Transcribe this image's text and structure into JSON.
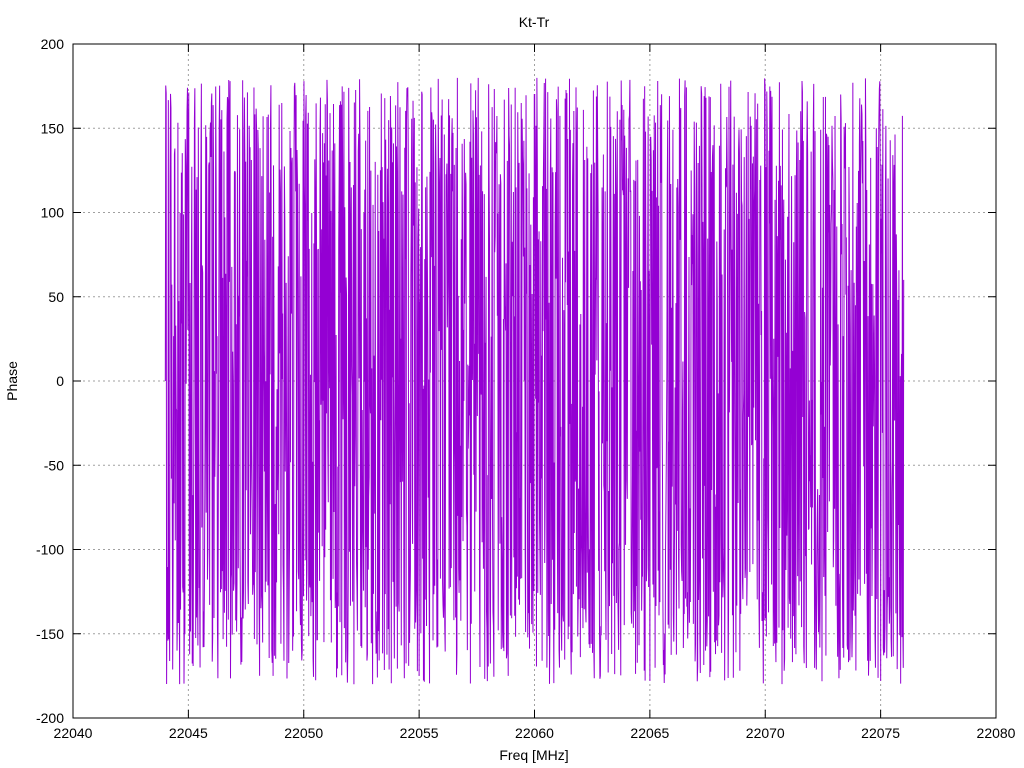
{
  "chart_data": {
    "type": "line",
    "title": "Kt-Tr",
    "xlabel": "Freq [MHz]",
    "ylabel": "Phase",
    "xlim": [
      22040,
      22080
    ],
    "ylim": [
      -200,
      200
    ],
    "xticks": [
      "22040",
      "22045",
      "22050",
      "22055",
      "22060",
      "22065",
      "22070",
      "22075",
      "22080"
    ],
    "yticks": [
      "200",
      "150",
      "100",
      "50",
      "0",
      "-50",
      "-100",
      "-150",
      "-200"
    ],
    "grid": true,
    "legend": "none",
    "series": [
      {
        "color": "#9400d3",
        "x_start": 22044.0,
        "x_end": 22076.0,
        "points": 1700,
        "phase_range": [
          -180,
          180
        ],
        "x_sample": [
          22044.0,
          22044.2,
          22044.5,
          22045.0,
          22045.5,
          22046.0,
          22050.0,
          22055.0,
          22060.0,
          22065.0,
          22070.0,
          22075.0,
          22076.0
        ],
        "y_sample": [
          0,
          120,
          -160,
          150,
          -170,
          165,
          178,
          -175,
          170,
          -178,
          175,
          -178,
          60
        ]
      }
    ],
    "colors": {
      "series": "#9400d3",
      "axis": "#000000",
      "grid": "#a0a0a0"
    }
  }
}
